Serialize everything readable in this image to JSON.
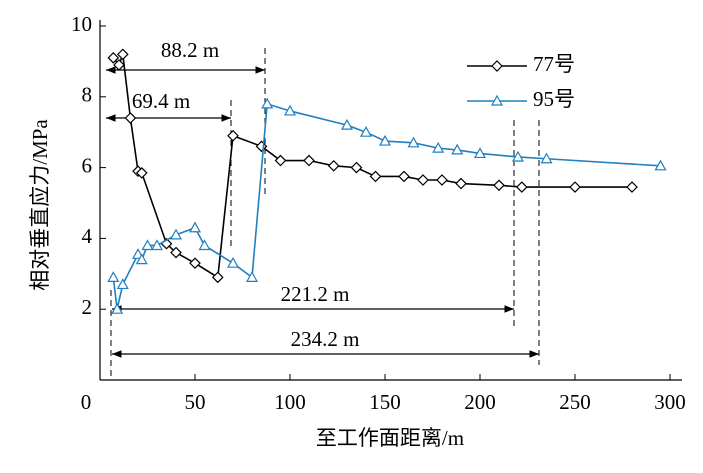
{
  "chart_data": {
    "type": "line",
    "xlabel": "至工作面距离/m",
    "ylabel": "相对垂直应力/MPa",
    "xlim": [
      0,
      300
    ],
    "xticks": [
      0,
      50,
      100,
      150,
      200,
      250,
      300
    ],
    "ylim": [
      0,
      10
    ],
    "yticks": [
      2,
      4,
      6,
      8,
      10
    ],
    "legend": "top-right",
    "series": [
      {
        "name": "77号",
        "color": "#000000",
        "marker": "diamond",
        "x": [
          7,
          10,
          12,
          16,
          20,
          22,
          35,
          40,
          50,
          62,
          70,
          85,
          95,
          110,
          123,
          135,
          145,
          160,
          170,
          180,
          190,
          210,
          222,
          250,
          280
        ],
        "values": [
          9.1,
          8.9,
          9.2,
          7.4,
          5.9,
          5.85,
          3.85,
          3.6,
          3.3,
          2.9,
          6.9,
          6.6,
          6.2,
          6.2,
          6.05,
          6.0,
          5.75,
          5.75,
          5.65,
          5.65,
          5.55,
          5.5,
          5.45,
          5.45,
          5.45
        ]
      },
      {
        "name": "95号",
        "color": "#1f7fbf",
        "marker": "triangle",
        "x": [
          7,
          9,
          12,
          20,
          22,
          25,
          30,
          40,
          50,
          55,
          70,
          80,
          88,
          100,
          130,
          140,
          150,
          165,
          178,
          188,
          200,
          220,
          235,
          295
        ],
        "values": [
          2.9,
          2.0,
          2.7,
          3.55,
          3.4,
          3.8,
          3.8,
          4.1,
          4.3,
          3.8,
          3.3,
          2.9,
          7.8,
          7.6,
          7.2,
          7.0,
          6.75,
          6.7,
          6.55,
          6.5,
          6.4,
          6.3,
          6.25,
          6.05
        ]
      }
    ],
    "annotations": [
      "88.2 m",
      "69.4 m",
      "221.2 m",
      "234.2 m"
    ]
  }
}
